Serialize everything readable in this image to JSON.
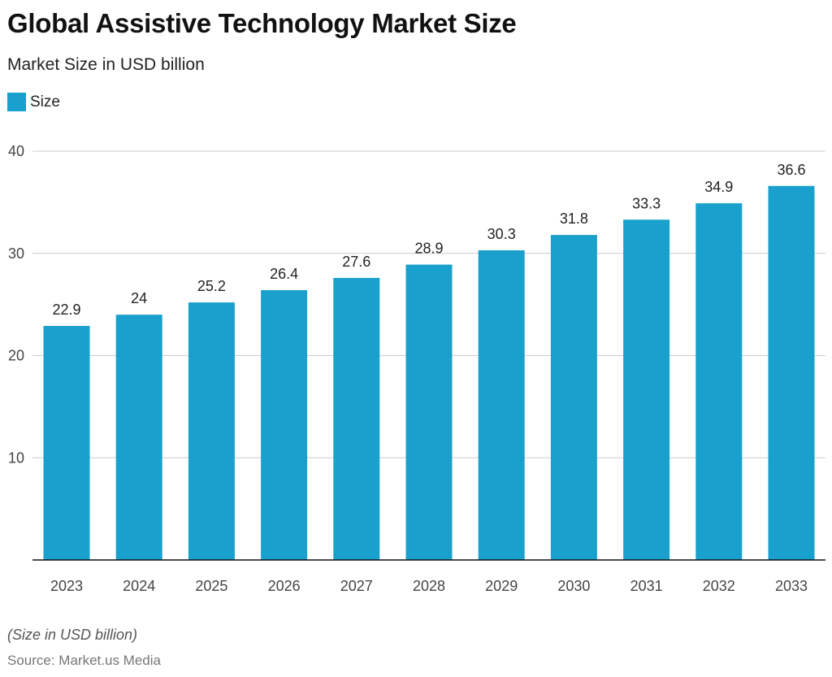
{
  "header": {
    "title": "Global Assistive Technology Market Size",
    "subtitle": "Market Size in USD billion"
  },
  "legend": {
    "label": "Size",
    "color": "#1aa0cc"
  },
  "footer": {
    "note": "(Size in USD billion)",
    "source": "Source: Market.us Media"
  },
  "chart_data": {
    "type": "bar",
    "title": "Global Assistive Technology Market Size",
    "subtitle": "Market Size in USD billion",
    "xlabel": "",
    "ylabel": "",
    "categories": [
      "2023",
      "2024",
      "2025",
      "2026",
      "2027",
      "2028",
      "2029",
      "2030",
      "2031",
      "2032",
      "2033"
    ],
    "series": [
      {
        "name": "Size",
        "values": [
          22.9,
          24,
          25.2,
          26.4,
          27.6,
          28.9,
          30.3,
          31.8,
          33.3,
          34.9,
          36.6
        ],
        "labels": [
          "22.9",
          "24",
          "25.2",
          "26.4",
          "27.6",
          "28.9",
          "30.3",
          "31.8",
          "33.3",
          "34.9",
          "36.6"
        ],
        "color": "#1aa0cc"
      }
    ],
    "ylim": [
      0,
      40
    ],
    "yticks": [
      10,
      20,
      30,
      40
    ],
    "grid": true,
    "gridColor": "#cccccc",
    "legend": "top-left"
  }
}
